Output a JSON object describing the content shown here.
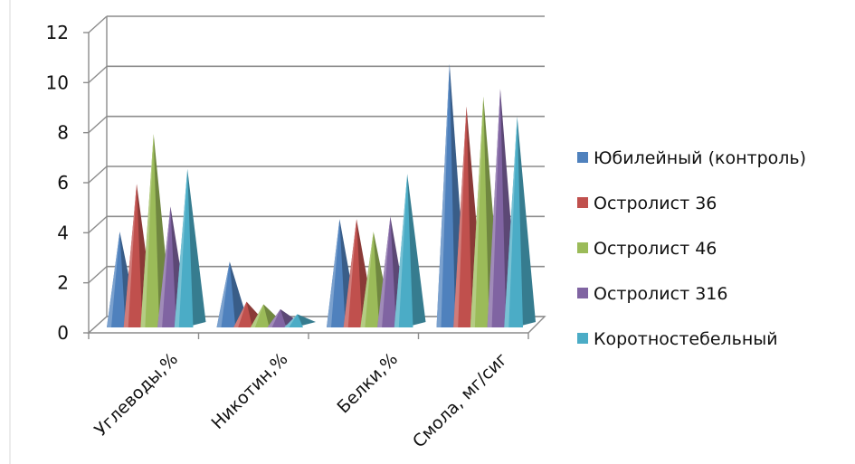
{
  "chart_data": {
    "type": "bar",
    "style": "3d-pyramid",
    "title": "",
    "xlabel": "",
    "ylabel": "",
    "ylim": [
      0,
      12
    ],
    "yticks": [
      0,
      2,
      4,
      6,
      8,
      10,
      12
    ],
    "grid": true,
    "legend_position": "right",
    "categories": [
      "Углеводы,%",
      "Никотин,%",
      "Белки,%",
      "Смола, мг/сиг"
    ],
    "series": [
      {
        "name": "Юбилейный (контроль)",
        "color": "#4F81BD",
        "values": [
          3.9,
          2.7,
          4.4,
          10.6
        ]
      },
      {
        "name": "Остролист 36",
        "color": "#C0504D",
        "values": [
          5.8,
          1.1,
          4.4,
          8.9
        ]
      },
      {
        "name": "Остролист 46",
        "color": "#9BBB59",
        "values": [
          7.8,
          1.0,
          3.9,
          9.3
        ]
      },
      {
        "name": "Остролист 316",
        "color": "#8064A2",
        "values": [
          4.9,
          0.8,
          4.5,
          9.6
        ]
      },
      {
        "name": "Коротностебельный",
        "color": "#4BACC6",
        "values": [
          6.4,
          0.6,
          6.2,
          8.5
        ]
      }
    ]
  }
}
